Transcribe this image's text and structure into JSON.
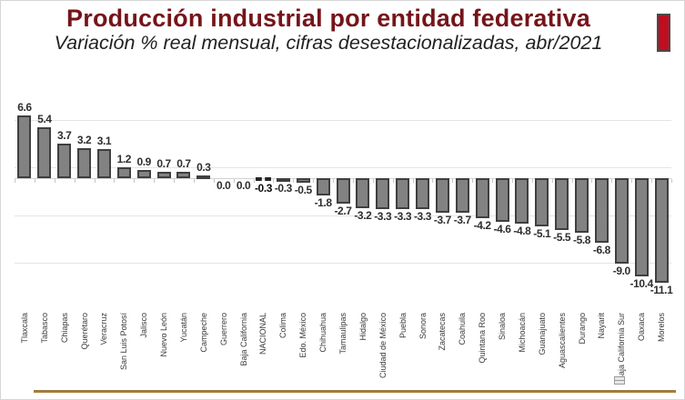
{
  "header": {
    "title": "Producción industrial por entidad federativa",
    "subtitle": "Variación % real mensual, cifras desestacionalizadas, abr/2021",
    "title_color": "#75141a",
    "accent_bar_color": "#c00d20"
  },
  "chart_data": {
    "type": "bar",
    "title": "Producción industrial por entidad federativa",
    "subtitle": "Variación % real mensual, cifras desestacionalizadas, abr/2021",
    "unit": "%",
    "period": "abr/2021",
    "highlight_category": "NACIONal_placeholder",
    "highlight": "NACIONAL",
    "categories": [
      "Tlaxcala",
      "Tabasco",
      "Chiapas",
      "Querétaro",
      "Veracruz",
      "San Luis Potosí",
      "Jalisco",
      "Nuevo León",
      "Yucatán",
      "Campeche",
      "Guerrero",
      "Baja California",
      "NACIONAL",
      "Colima",
      "Edo. México",
      "Chihuahua",
      "Tamaulipas",
      "Hidalgo",
      "Ciudad de México",
      "Puebla",
      "Sonora",
      "Zacatecas",
      "Coahuila",
      "Quintana Roo",
      "Sinaloa",
      "Michoacán",
      "Guanajuato",
      "Aguascalientes",
      "Durango",
      "Nayarit",
      "Baja California Sur",
      "Oaxaca",
      "Morelos"
    ],
    "values": [
      6.6,
      5.4,
      3.7,
      3.2,
      3.1,
      1.2,
      0.9,
      0.7,
      0.7,
      0.3,
      0.0,
      0.0,
      -0.3,
      -0.3,
      -0.5,
      -1.8,
      -2.7,
      -3.2,
      -3.3,
      -3.3,
      -3.3,
      -3.7,
      -3.7,
      -4.2,
      -4.6,
      -4.8,
      -5.1,
      -5.5,
      -5.8,
      -6.8,
      -9.0,
      -10.4,
      -11.1
    ],
    "bar_color": "#828282",
    "bar_border_color": "#3f3f3f",
    "grid": "horizontal-faint",
    "gridline_values": [
      6.2,
      1.2,
      -3.9,
      -8.9
    ],
    "ylim": [
      -12,
      7
    ],
    "legend": "none",
    "value_label_format": "one-decimal"
  },
  "footer": {
    "divider_color": "#a17d3e"
  }
}
